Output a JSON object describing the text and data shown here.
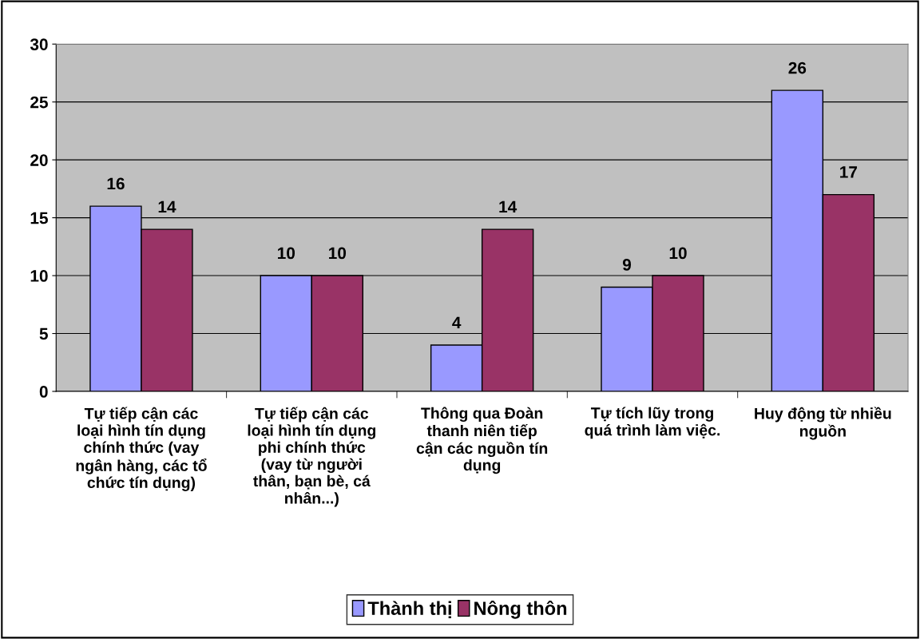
{
  "chart_data": {
    "type": "bar",
    "categories": [
      "Tự tiếp cận các\nloại hình tín dụng\nchính thức (vay\nngân hàng, các tổ\nchức tín dụng)",
      "Tự tiếp cận các\nloại hình tín dụng\nphi chính thức\n(vay từ người\nthân, bạn bè, cá\nnhân...)",
      "Thông qua Đoàn\nthanh niên tiếp\ncận các nguồn tín\ndụng",
      "Tự tích lũy trong\nquá trình làm việc.",
      "Huy động từ nhiều\nnguồn"
    ],
    "series": [
      {
        "name": "Thành thị",
        "color": "#9999ff",
        "values": [
          16,
          10,
          4,
          9,
          26
        ]
      },
      {
        "name": "Nông thôn",
        "color": "#993366",
        "values": [
          14,
          10,
          14,
          10,
          17
        ]
      }
    ],
    "ylim": [
      0,
      30
    ],
    "yticks": [
      0,
      5,
      10,
      15,
      20,
      25,
      30
    ],
    "grid": "y",
    "legend": "bottom",
    "data_labels": true
  }
}
